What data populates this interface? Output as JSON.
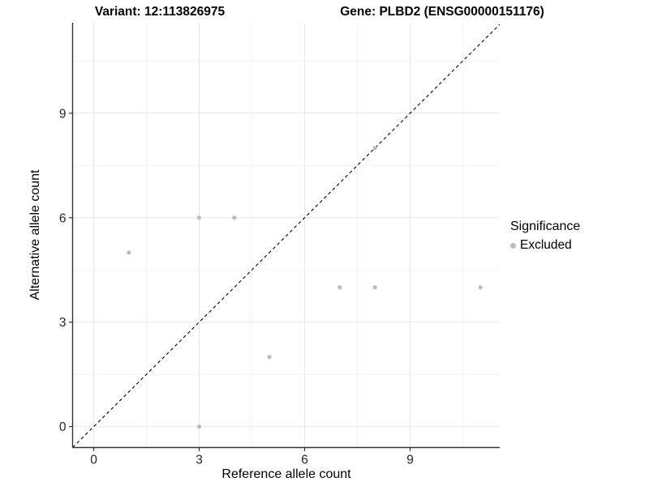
{
  "header": {
    "variant_title": "Variant: 12:113826975",
    "gene_title": "Gene: PLBD2 (ENSG00000151176)"
  },
  "chart_data": {
    "type": "scatter",
    "title": "Variant: 12:113826975  /  Gene: PLBD2 (ENSG00000151176)",
    "xlabel": "Reference allele count",
    "ylabel": "Alternative allele count",
    "xlim": [
      -0.6,
      11.55
    ],
    "ylim": [
      -0.6,
      11.6
    ],
    "xticks": [
      0,
      3,
      6,
      9
    ],
    "yticks": [
      0,
      3,
      6,
      9
    ],
    "minor_gridlines_x": [
      1.5,
      4.5,
      7.5,
      10.5
    ],
    "minor_gridlines_y": [
      1.5,
      4.5,
      7.5,
      10.5
    ],
    "grid": true,
    "legend_position": "right",
    "series": [
      {
        "name": "Excluded",
        "color": "#bcbcbc",
        "points": [
          [
            1,
            5
          ],
          [
            3,
            0
          ],
          [
            3,
            6
          ],
          [
            4,
            6
          ],
          [
            5,
            2
          ],
          [
            7,
            4
          ],
          [
            8,
            4
          ],
          [
            8,
            8
          ],
          [
            11,
            4
          ]
        ]
      }
    ],
    "reference_line": {
      "equation": "y=x",
      "style": "dashed",
      "color": "#000000"
    }
  },
  "legend": {
    "title": "Significance",
    "items": [
      {
        "label": "Excluded",
        "color": "#bcbcbc"
      }
    ]
  },
  "colors": {
    "background": "#ffffff",
    "grid_major": "#e7e7e7",
    "grid_minor": "#f4f4f4",
    "axis_line": "#333333",
    "tick_label": "#262626",
    "point": "#bcbcbc"
  }
}
